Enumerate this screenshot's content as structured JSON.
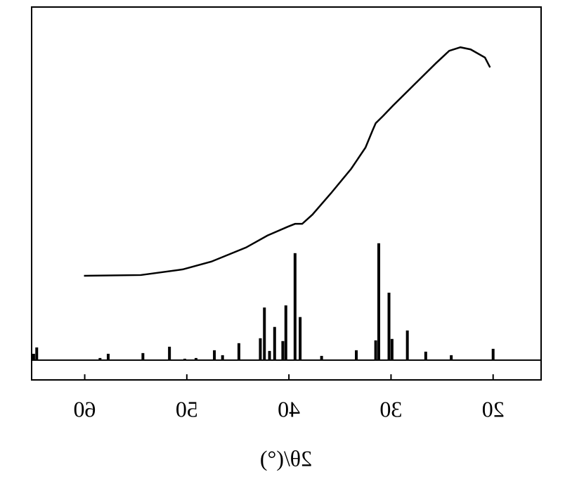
{
  "chart_data": {
    "type": "line",
    "xlabel": "2θ/(°)",
    "xlim": [
      65.2,
      15.3
    ],
    "ylim": [
      -5.6,
      100
    ],
    "xticks": [
      60,
      50,
      40,
      30,
      20
    ],
    "series": [
      {
        "kind": "line",
        "color": "#000000",
        "x": [
          60.07,
          54.5,
          50.4,
          47.6,
          44.2,
          42.1,
          40.1,
          39.4,
          38.7,
          37.7,
          35.9,
          33.9,
          32.5,
          31.8,
          31.5,
          30.8,
          29.8,
          27.7,
          25.6,
          24.3,
          23.2,
          22.2,
          20.8,
          20.3
        ],
        "values": [
          23.9,
          24.1,
          25.7,
          27.9,
          31.9,
          35.3,
          37.8,
          38.6,
          38.6,
          41.2,
          47.2,
          54.2,
          60.2,
          65.1,
          67.1,
          69.1,
          72.1,
          78.1,
          84.1,
          87.6,
          88.6,
          88.0,
          85.7,
          82.9
        ]
      },
      {
        "kind": "stick",
        "color": "#000000",
        "x": [
          65.0,
          64.7,
          58.5,
          57.7,
          54.3,
          51.7,
          50.2,
          49.1,
          47.3,
          46.5,
          44.9,
          42.8,
          42.4,
          41.9,
          41.4,
          40.6,
          40.3,
          39.4,
          38.9,
          36.8,
          33.4,
          31.5,
          31.2,
          30.2,
          29.9,
          28.4,
          26.6,
          24.1,
          20.0
        ],
        "values": [
          1.8,
          3.6,
          0.6,
          1.8,
          2.0,
          3.8,
          0.4,
          0.6,
          2.8,
          1.4,
          4.8,
          6.2,
          14.9,
          2.6,
          9.4,
          5.4,
          15.5,
          30.3,
          12.2,
          1.2,
          2.8,
          5.6,
          33.1,
          19.1,
          6.0,
          8.4,
          2.4,
          1.4,
          3.2
        ]
      }
    ]
  }
}
